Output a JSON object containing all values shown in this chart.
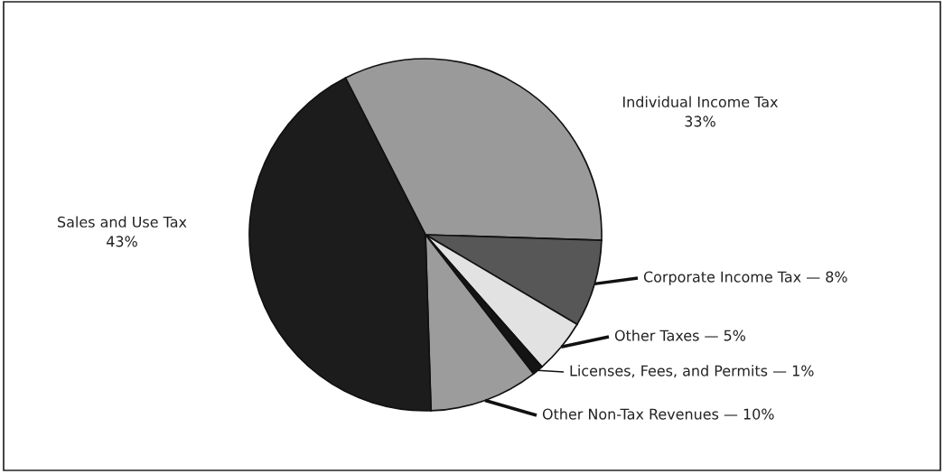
{
  "chart_data": {
    "type": "pie",
    "categories": [
      "Individual Income Tax",
      "Corporate Income Tax",
      "Other Taxes",
      "Licenses, Fees, and Permits",
      "Other Non-Tax Revenues",
      "Sales and Use Tax"
    ],
    "values": [
      33,
      8,
      5,
      1,
      10,
      43
    ],
    "value_labels": [
      "33%",
      "— 8%",
      "— 5%",
      "— 1%",
      "— 10%",
      "43%"
    ],
    "colors": [
      "#9a9a9a",
      "#575757",
      "#e2e2e2",
      "#141414",
      "#9c9c9c",
      "#1c1c1c"
    ]
  }
}
